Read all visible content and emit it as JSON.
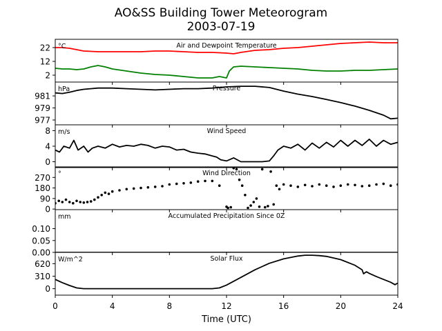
{
  "figure": {
    "title_line1": "AO&SS Building Tower Meteorogram",
    "title_line2": "2003-07-19",
    "xlabel": "Time (UTC)"
  },
  "x_axis": {
    "range": [
      0,
      24
    ],
    "ticks": [
      0,
      4,
      8,
      12,
      16,
      20,
      24
    ],
    "tick_labels": [
      "0",
      "4",
      "8",
      "12",
      "16",
      "20",
      "24"
    ]
  },
  "chart_data": [
    {
      "type": "line",
      "title": "Air and Dewpoint Temperature",
      "unit_label": "°C",
      "ylim": [
        -3,
        28
      ],
      "yticks": [
        2,
        12,
        22
      ],
      "ytick_labels": [
        "2",
        "12",
        "22"
      ],
      "series": [
        {
          "color": "#ff0000",
          "x": [
            0,
            0.5,
            1,
            1.5,
            2,
            3,
            4,
            5,
            6,
            7,
            8,
            9,
            10,
            11,
            12,
            12.5,
            13,
            14,
            15,
            16,
            17,
            18,
            19,
            20,
            21,
            22,
            23,
            24
          ],
          "y": [
            22,
            22,
            21.5,
            20.5,
            19.5,
            19,
            19,
            19,
            19,
            19.5,
            19.5,
            19,
            18.5,
            18.5,
            18,
            17.5,
            18.5,
            20,
            20.5,
            21.5,
            22,
            23,
            24,
            25,
            25.5,
            26,
            25.5,
            25.5
          ]
        },
        {
          "color": "#008000",
          "x": [
            0,
            0.5,
            1,
            1.5,
            2,
            2.5,
            3,
            3.5,
            4,
            5,
            6,
            7,
            8,
            9,
            10,
            11,
            11.5,
            12,
            12.2,
            12.5,
            13,
            14,
            15,
            16,
            17,
            18,
            19,
            20,
            21,
            22,
            23,
            24
          ],
          "y": [
            7,
            6.5,
            6.5,
            6,
            6.5,
            8,
            9,
            8,
            6.5,
            5,
            3.5,
            2.5,
            2,
            1,
            0,
            0,
            1,
            0,
            5,
            8,
            8.5,
            8,
            7.5,
            7,
            6.5,
            5.5,
            5,
            5,
            5.5,
            5.5,
            6,
            6.5
          ]
        }
      ]
    },
    {
      "type": "line",
      "title": "Pressure",
      "unit_label": "hPa",
      "ylim": [
        976.2,
        983.3
      ],
      "yticks": [
        977,
        979,
        981
      ],
      "ytick_labels": [
        "977",
        "979",
        "981"
      ],
      "series": [
        {
          "color": "#000000",
          "x": [
            0,
            0.5,
            1,
            1.5,
            2,
            3,
            4,
            5,
            6,
            7,
            8,
            9,
            10,
            11,
            12,
            13,
            14,
            15,
            16,
            17,
            18,
            19,
            20,
            21,
            22,
            23,
            23.5,
            24
          ],
          "y": [
            981.5,
            981.4,
            981.6,
            981.9,
            982.1,
            982.3,
            982.3,
            982.2,
            982.1,
            982.0,
            982.1,
            982.2,
            982.2,
            982.3,
            982.5,
            982.6,
            982.6,
            982.4,
            981.8,
            981.3,
            980.9,
            980.4,
            979.9,
            979.3,
            978.6,
            977.8,
            977.2,
            977.3
          ]
        }
      ]
    },
    {
      "type": "line",
      "title": "Wind Speed",
      "unit_label": "m/s",
      "ylim": [
        -1.5,
        9.5
      ],
      "yticks": [
        0,
        4,
        8
      ],
      "ytick_labels": [
        "0",
        "4",
        "8"
      ],
      "series": [
        {
          "color": "#000000",
          "x": [
            0,
            0.3,
            0.6,
            1,
            1.3,
            1.6,
            2,
            2.3,
            2.6,
            3,
            3.5,
            4,
            4.5,
            5,
            5.5,
            6,
            6.5,
            7,
            7.5,
            8,
            8.5,
            9,
            9.5,
            10,
            10.5,
            11,
            11.3,
            11.6,
            12,
            12.5,
            13,
            13.5,
            14,
            14.5,
            15,
            15.3,
            15.6,
            16,
            16.5,
            17,
            17.5,
            18,
            18.5,
            19,
            19.5,
            20,
            20.5,
            21,
            21.5,
            22,
            22.5,
            23,
            23.5,
            24
          ],
          "y": [
            3,
            2.5,
            4,
            3.5,
            5.5,
            3,
            4,
            2.5,
            3.5,
            4,
            3.5,
            4.5,
            3.8,
            4.2,
            4,
            4.5,
            4.2,
            3.5,
            4,
            3.8,
            3,
            3.2,
            2.5,
            2.2,
            2,
            1.5,
            1.2,
            0.5,
            0.2,
            1,
            0,
            0,
            0,
            0,
            0.2,
            1.5,
            3,
            4,
            3.5,
            4.5,
            3,
            4.8,
            3.5,
            5,
            3.8,
            5.5,
            4,
            5.5,
            4.2,
            5.8,
            4,
            5.5,
            4.5,
            5
          ]
        }
      ]
    },
    {
      "type": "scatter",
      "title": "Wind Direction",
      "unit_label": "°",
      "ylim": [
        -5,
        360
      ],
      "yticks": [
        0,
        90,
        180,
        270
      ],
      "ytick_labels": [
        "0",
        "90",
        "180",
        "270"
      ],
      "series": [
        {
          "color": "#000000",
          "x": [
            0,
            0.25,
            0.5,
            0.75,
            1,
            1.25,
            1.5,
            1.75,
            2,
            2.25,
            2.5,
            2.75,
            3,
            3.25,
            3.5,
            3.75,
            4,
            4.5,
            5,
            5.5,
            6,
            6.5,
            7,
            7.5,
            8,
            8.5,
            9,
            9.5,
            10,
            10.5,
            11,
            11.5,
            12,
            12.1,
            12.3,
            12.5,
            12.7,
            12.9,
            13.1,
            13.3,
            13.5,
            13.7,
            13.9,
            14.1,
            14.3,
            14.5,
            14.7,
            14.9,
            15.1,
            15.3,
            15.5,
            15.7,
            16,
            16.5,
            17,
            17.5,
            18,
            18.5,
            19,
            19.5,
            20,
            20.5,
            21,
            21.5,
            22,
            22.5,
            23,
            23.5,
            24
          ],
          "y": [
            50,
            70,
            60,
            80,
            60,
            50,
            70,
            60,
            55,
            60,
            65,
            80,
            100,
            120,
            140,
            130,
            150,
            160,
            170,
            175,
            180,
            185,
            190,
            195,
            210,
            215,
            220,
            225,
            235,
            240,
            240,
            200,
            20,
            10,
            15,
            350,
            340,
            250,
            200,
            120,
            10,
            30,
            60,
            90,
            20,
            340,
            15,
            25,
            320,
            40,
            200,
            170,
            210,
            200,
            190,
            205,
            195,
            210,
            200,
            190,
            200,
            210,
            205,
            195,
            200,
            210,
            215,
            200,
            210
          ]
        }
      ]
    },
    {
      "type": "line",
      "title": "Accumulated Precipitation Since 0Z",
      "unit_label": "mm",
      "ylim": [
        0,
        0.18
      ],
      "yticks": [
        0.0,
        0.05,
        0.1
      ],
      "ytick_labels": [
        "0.00",
        "0.05",
        "0.10"
      ],
      "series": [
        {
          "color": "#000000",
          "x": [
            0,
            24
          ],
          "y": [
            0,
            0
          ]
        }
      ]
    },
    {
      "type": "line",
      "title": "Solar Flux",
      "unit_label": "W/m^2",
      "ylim": [
        -160,
        900
      ],
      "yticks": [
        0,
        310,
        620
      ],
      "ytick_labels": [
        "0",
        "310",
        "620"
      ],
      "series": [
        {
          "color": "#000000",
          "x": [
            0,
            0.5,
            1,
            1.5,
            2,
            4,
            6,
            8,
            10,
            11,
            11.5,
            12,
            13,
            14,
            15,
            16,
            17,
            17.5,
            18,
            18.5,
            19,
            20,
            21,
            21.5,
            21.6,
            21.8,
            22,
            22.5,
            23,
            23.5,
            23.8,
            24
          ],
          "y": [
            230,
            150,
            80,
            20,
            0,
            0,
            0,
            0,
            0,
            0,
            20,
            90,
            280,
            470,
            630,
            740,
            810,
            830,
            830,
            820,
            800,
            720,
            580,
            470,
            370,
            420,
            380,
            300,
            230,
            160,
            100,
            140
          ]
        }
      ]
    }
  ]
}
